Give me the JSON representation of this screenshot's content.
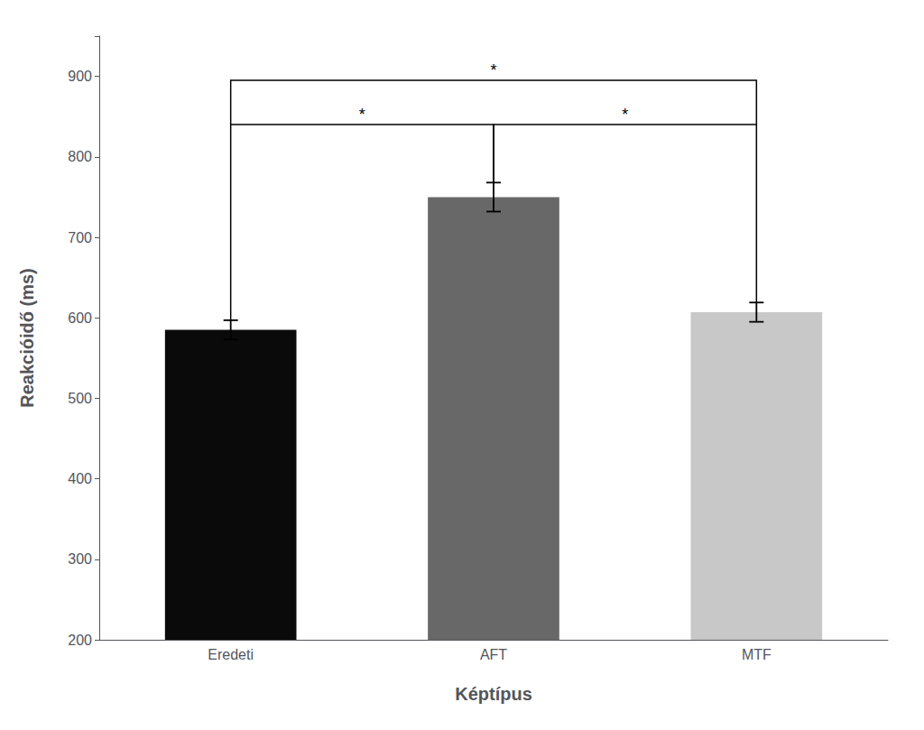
{
  "chart_data": {
    "type": "bar",
    "categories": [
      "Eredeti",
      "AFT",
      "MTF"
    ],
    "values": [
      585,
      750,
      607
    ],
    "errors": [
      12,
      18,
      12
    ],
    "colors": [
      "#0a0a0a",
      "#686868",
      "#c8c8c8"
    ],
    "xlabel": "Képtípus",
    "ylabel": "Reakcióidő (ms)",
    "ylim": [
      200,
      950
    ],
    "yticks": [
      200,
      300,
      400,
      500,
      600,
      700,
      800,
      900
    ],
    "grid": false,
    "brackets": [
      {
        "from": "Eredeti",
        "to": "AFT",
        "y_from": 597,
        "y_to": 768,
        "y": 840,
        "label": "*"
      },
      {
        "from": "AFT",
        "to": "MTF",
        "y_from": 768,
        "y_to": 619,
        "y": 840,
        "label": "*"
      },
      {
        "from": "Eredeti",
        "to": "MTF",
        "y_from": 840,
        "y_to": 840,
        "y": 895,
        "label": "*"
      }
    ]
  }
}
